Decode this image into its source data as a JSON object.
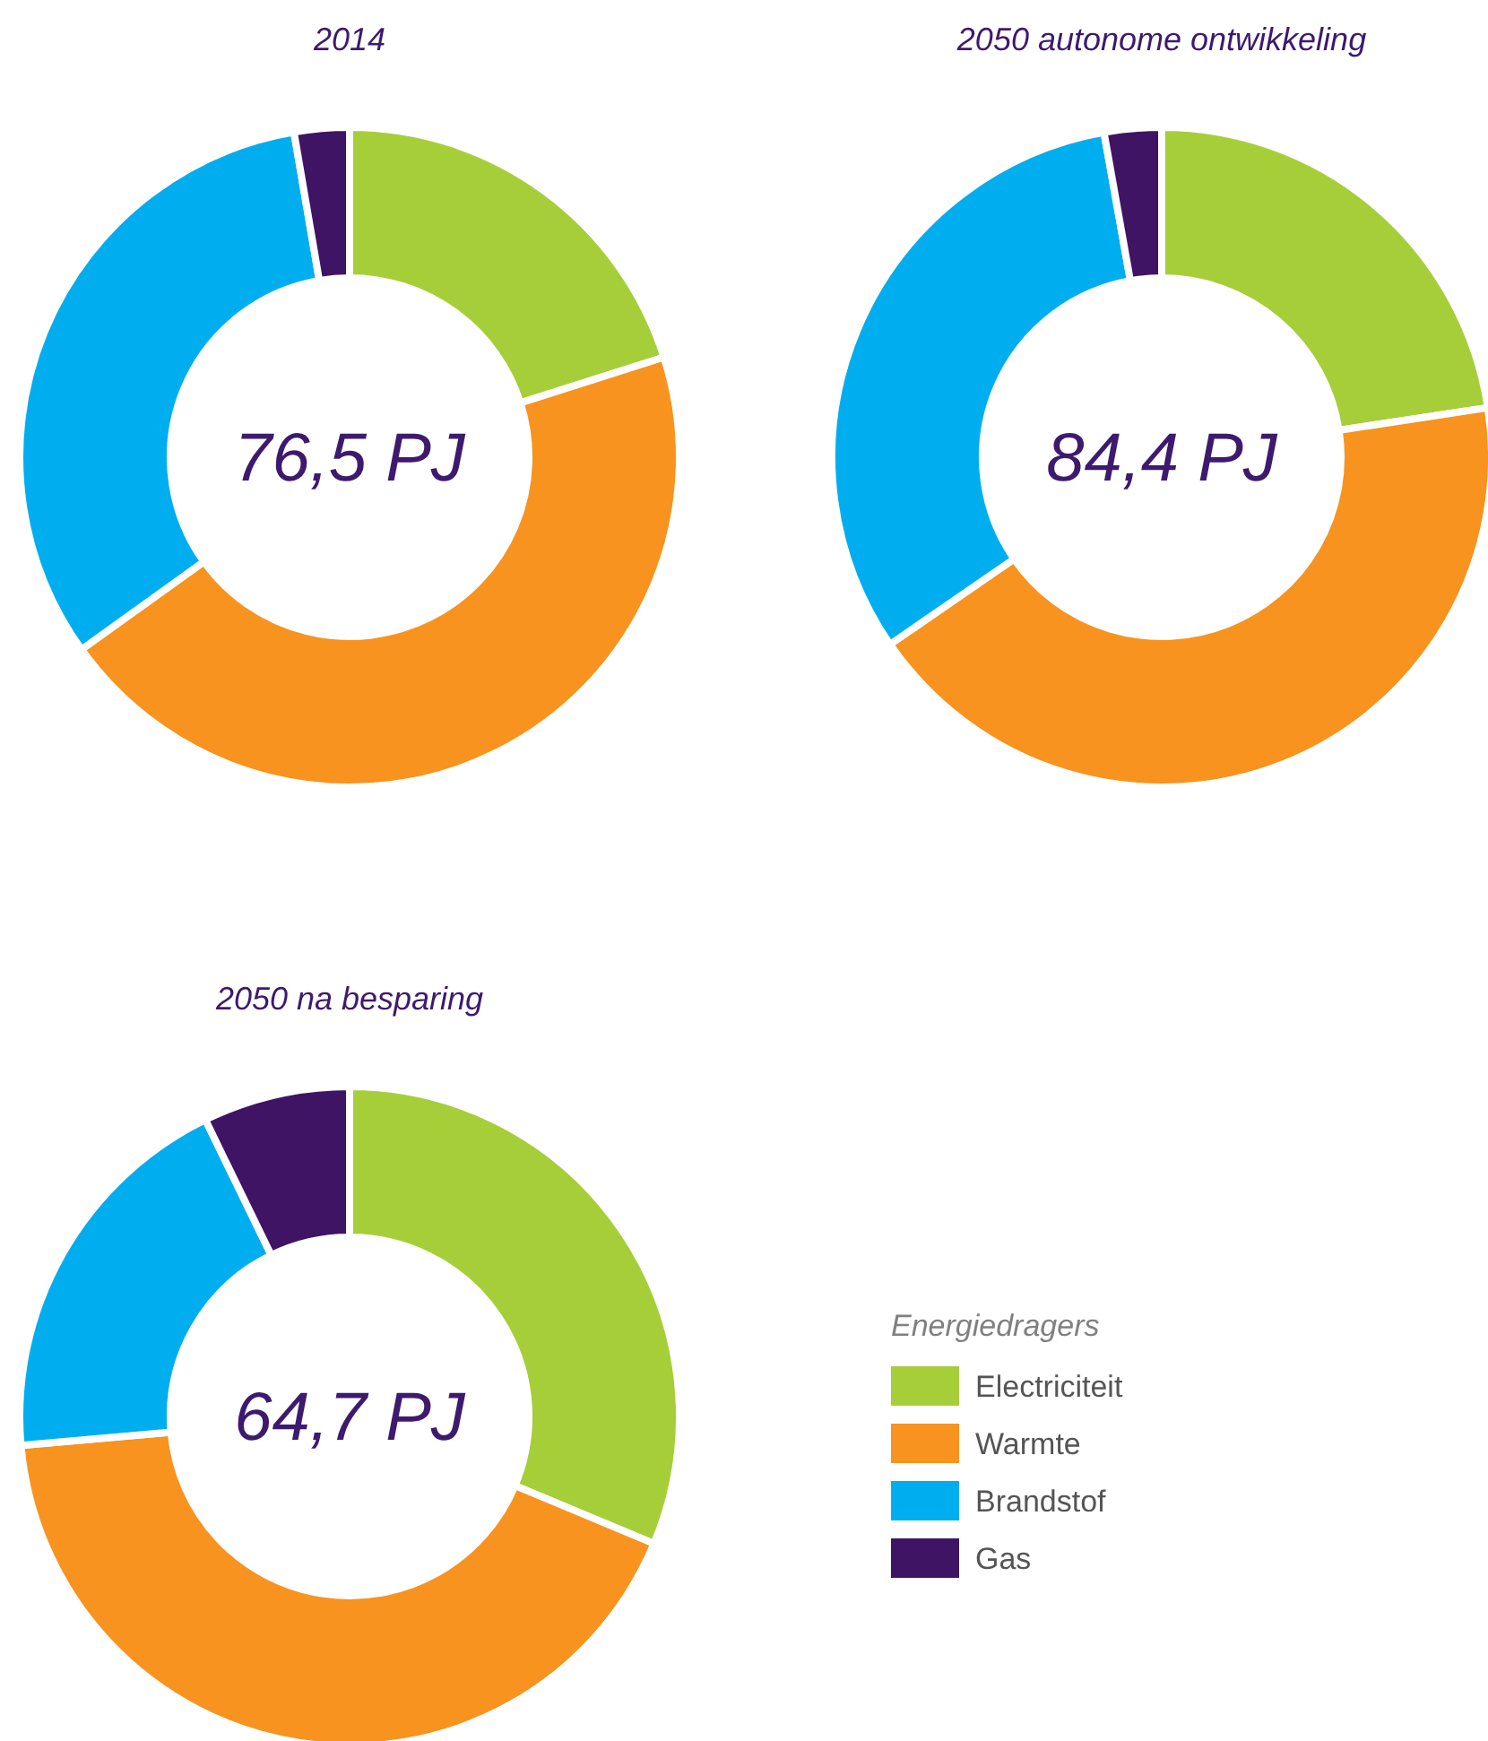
{
  "chart_data": [
    {
      "type": "donut",
      "title": "2014",
      "categories": [
        null,
        null,
        null,
        null
      ],
      "values": [
        20.1,
        45.0,
        32.2,
        2.7
      ],
      "colors": [
        "#a6ce39",
        "#f7931e",
        "#00aeef",
        "#3f1464"
      ],
      "annotations": [
        "76,5 PJ"
      ],
      "legend": false
    },
    {
      "type": "donut",
      "title": "2050 autonome ontwikkeling",
      "categories": [
        null,
        null,
        null,
        null
      ],
      "values": [
        22.6,
        42.8,
        31.8,
        2.8
      ],
      "colors": [
        "#a6ce39",
        "#f7931e",
        "#00aeef",
        "#3f1464"
      ],
      "annotations": [
        "84,4 PJ"
      ],
      "legend": false
    },
    {
      "type": "donut",
      "title": "2050 na besparing",
      "categories": [
        "Electriciteit",
        "Warmte",
        "Brandstof",
        "Gas"
      ],
      "values": [
        31.3,
        42.3,
        19.2,
        7.2
      ],
      "colors": [
        "#a6ce39",
        "#f7931e",
        "#00aeef",
        "#3f1464"
      ],
      "annotations": [
        "64,7 PJ"
      ],
      "legend": "right",
      "legend_title": "Energiedragers"
    }
  ]
}
